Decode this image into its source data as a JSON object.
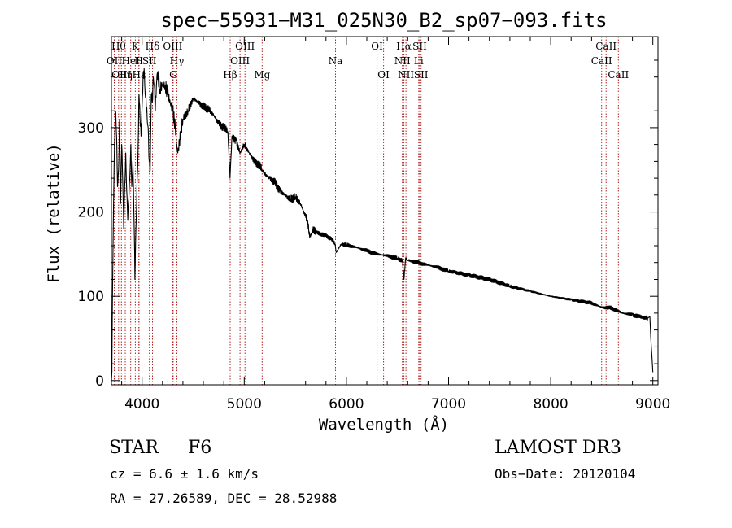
{
  "chart_data": {
    "type": "line",
    "title": "spec−55931−M31_025N30_B2_sp07−093.fits",
    "xlabel": "Wavelength (Å)",
    "ylabel": "Flux (relative)",
    "xlim": [
      3700,
      9050
    ],
    "ylim": [
      -5,
      408
    ],
    "xticks": [
      4000,
      5000,
      6000,
      7000,
      8000,
      9000
    ],
    "xtick_labels": [
      "4000",
      "5000",
      "6000",
      "7000",
      "8000",
      "9000"
    ],
    "yticks": [
      0,
      100,
      200,
      300
    ],
    "ytick_labels": [
      "0",
      "100",
      "200",
      "300"
    ],
    "grid": false,
    "legend": "none",
    "line_color": "#000000",
    "marker_color": "#b22222",
    "spectrum": {
      "x": [
        3700,
        3705,
        3710,
        3715,
        3720,
        3730,
        3740,
        3750,
        3760,
        3770,
        3780,
        3790,
        3800,
        3810,
        3820,
        3830,
        3840,
        3850,
        3860,
        3870,
        3880,
        3890,
        3900,
        3910,
        3920,
        3930,
        3940,
        3950,
        3960,
        3965,
        3970,
        3980,
        3990,
        4000,
        4010,
        4020,
        4030,
        4040,
        4050,
        4060,
        4070,
        4080,
        4090,
        4100,
        4110,
        4120,
        4130,
        4140,
        4150,
        4175,
        4200,
        4225,
        4250,
        4275,
        4300,
        4325,
        4340,
        4350,
        4375,
        4400,
        4450,
        4500,
        4550,
        4600,
        4650,
        4700,
        4750,
        4800,
        4840,
        4861,
        4880,
        4920,
        4960,
        5000,
        5050,
        5100,
        5150,
        5175,
        5200,
        5250,
        5300,
        5350,
        5400,
        5450,
        5500,
        5550,
        5600,
        5620,
        5640,
        5660,
        5680,
        5700,
        5800,
        5850,
        5890,
        5900,
        5950,
        6000,
        6100,
        6200,
        6300,
        6400,
        6500,
        6550,
        6563,
        6580,
        6600,
        6700,
        6800,
        6900,
        7000,
        7200,
        7400,
        7600,
        7800,
        8000,
        8200,
        8400,
        8500,
        8600,
        8700,
        8800,
        8900,
        8950,
        8970,
        8980,
        8990,
        9000
      ],
      "y": [
        0,
        10,
        100,
        150,
        200,
        280,
        320,
        290,
        230,
        250,
        310,
        210,
        280,
        240,
        180,
        230,
        270,
        225,
        190,
        215,
        240,
        280,
        230,
        260,
        200,
        120,
        180,
        230,
        270,
        300,
        340,
        310,
        290,
        325,
        360,
        370,
        340,
        330,
        310,
        300,
        260,
        250,
        340,
        330,
        360,
        350,
        320,
        350,
        365,
        345,
        350,
        350,
        340,
        330,
        320,
        300,
        280,
        270,
        290,
        310,
        320,
        335,
        330,
        325,
        322,
        315,
        305,
        300,
        295,
        240,
        290,
        285,
        270,
        280,
        270,
        260,
        255,
        250,
        245,
        240,
        235,
        225,
        220,
        215,
        218,
        210,
        195,
        190,
        170,
        175,
        180,
        176,
        172,
        168,
        162,
        152,
        162,
        161,
        158,
        154,
        150,
        148,
        145,
        142,
        120,
        145,
        143,
        140,
        137,
        134,
        130,
        125,
        120,
        112,
        106,
        100,
        96,
        92,
        87,
        86,
        80,
        78,
        75,
        74,
        76,
        50,
        30,
        10
      ]
    },
    "lines": [
      {
        "x": 3728,
        "label": "OII",
        "row": 1
      },
      {
        "x": 3770,
        "label": "Hθ",
        "row": 0
      },
      {
        "x": 3798,
        "label": "OIII",
        "row": 2
      },
      {
        "x": 3835,
        "label": "Hη",
        "row": 2
      },
      {
        "x": 3889,
        "label": "HeI",
        "row": 1
      },
      {
        "x": 3934,
        "label": "K",
        "row": 0
      },
      {
        "x": 3970,
        "label": "Hε",
        "row": 2
      },
      {
        "x": 3968,
        "label": "H",
        "row": 1
      },
      {
        "x": 4072,
        "label": "SII",
        "row": 1
      },
      {
        "x": 4102,
        "label": "Hδ",
        "row": 0
      },
      {
        "x": 4300,
        "label": "OIII",
        "row": 0
      },
      {
        "x": 4304,
        "label": "G",
        "row": 2
      },
      {
        "x": 4341,
        "label": "Hγ",
        "row": 1
      },
      {
        "x": 4862,
        "label": "Hβ",
        "row": 2
      },
      {
        "x": 4959,
        "label": "OIII",
        "row": 1
      },
      {
        "x": 5007,
        "label": "OIII",
        "row": 0
      },
      {
        "x": 5175,
        "label": "Mg",
        "row": 2
      },
      {
        "x": 5893,
        "label": "Na",
        "row": 1
      },
      {
        "x": 6300,
        "label": "OI",
        "row": 0
      },
      {
        "x": 6364,
        "label": "OI",
        "row": 2
      },
      {
        "x": 6548,
        "label": "NII",
        "row": 1
      },
      {
        "x": 6563,
        "label": "Hα",
        "row": 0
      },
      {
        "x": 6583,
        "label": "NII",
        "row": 2
      },
      {
        "x": 6708,
        "label": "Li",
        "row": 1
      },
      {
        "x": 6717,
        "label": "SII",
        "row": 0
      },
      {
        "x": 6731,
        "label": "SII",
        "row": 2
      },
      {
        "x": 8498,
        "label": "CaII",
        "row": 1
      },
      {
        "x": 8542,
        "label": "CaII",
        "row": 0
      },
      {
        "x": 8662,
        "label": "CaII",
        "row": 2
      }
    ]
  },
  "info": {
    "class_label": "STAR",
    "subclass": "F6",
    "survey": "LAMOST DR3",
    "cz": "cz = 6.6 ± 1.6 km/s",
    "obs_date": "Obs−Date: 20120104",
    "radec": "RA =  27.26589, DEC =  28.52988"
  }
}
